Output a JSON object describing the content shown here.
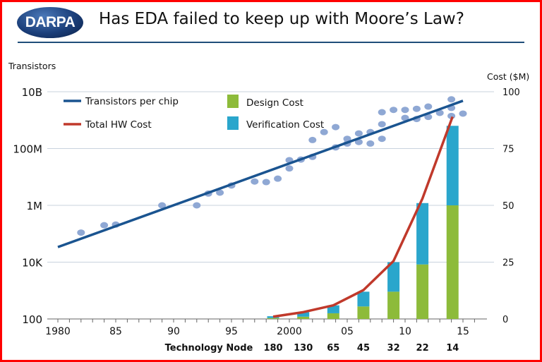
{
  "slide": {
    "logo_text": "DARPA",
    "title": "Has EDA failed to keep up with Moore’s Law?"
  },
  "colors": {
    "frame": "#ff0000",
    "transistor_line": "#1a5490",
    "scatter": "#8fa8d4",
    "hw_cost": "#c0392b",
    "design_cost": "#8dbb3a",
    "verification_cost": "#2aa6cc"
  },
  "chart_data": {
    "type": "combo",
    "left_axis_label": "Transistors",
    "right_axis_label": "Cost ($M)",
    "x_label": "Technology Node",
    "x_ticks": [
      {
        "value": 1980,
        "label": "1980"
      },
      {
        "value": 1985,
        "label": "85"
      },
      {
        "value": 1990,
        "label": "90"
      },
      {
        "value": 1995,
        "label": "95"
      },
      {
        "value": 2000,
        "label": "2000"
      },
      {
        "value": 2005,
        "label": "05"
      },
      {
        "value": 2010,
        "label": "10"
      },
      {
        "value": 2015,
        "label": "15"
      }
    ],
    "xlim": [
      1979,
      2017
    ],
    "left_scale": "log",
    "left_ylim": [
      100,
      10000000000
    ],
    "left_ticks": [
      {
        "value": 100,
        "label": "100"
      },
      {
        "value": 10000,
        "label": "10K"
      },
      {
        "value": 1000000,
        "label": "1M"
      },
      {
        "value": 100000000,
        "label": "100M"
      },
      {
        "value": 10000000000,
        "label": "10B"
      }
    ],
    "right_ylim": [
      0,
      100
    ],
    "right_ticks": [
      {
        "value": 0,
        "label": "0"
      },
      {
        "value": 25,
        "label": "25"
      },
      {
        "value": 50,
        "label": "50"
      },
      {
        "value": 75,
        "label": "75"
      },
      {
        "value": 100,
        "label": "100"
      }
    ],
    "grid": true,
    "legend": [
      {
        "name": "Transistors per chip",
        "kind": "line"
      },
      {
        "name": "Total HW Cost",
        "kind": "line"
      },
      {
        "name": "Design Cost",
        "kind": "bar"
      },
      {
        "name": "Verification Cost",
        "kind": "bar"
      }
    ],
    "legend_placement": "top-left",
    "transistor_scatter": [
      [
        1982,
        110000
      ],
      [
        1984,
        200000
      ],
      [
        1985,
        210000
      ],
      [
        1989,
        1000000
      ],
      [
        1992,
        1000000
      ],
      [
        1993,
        2600000
      ],
      [
        1994,
        2800000
      ],
      [
        1995,
        5000000
      ],
      [
        1997,
        6900000
      ],
      [
        1998,
        6600000
      ],
      [
        1999,
        8700000
      ],
      [
        2000,
        39000000
      ],
      [
        2000,
        20000000
      ],
      [
        2001,
        41000000
      ],
      [
        2002,
        200000000
      ],
      [
        2002,
        51000000
      ],
      [
        2003,
        380000000
      ],
      [
        2004,
        570000000
      ],
      [
        2004,
        110000000
      ],
      [
        2005,
        220000000
      ],
      [
        2005,
        150000000
      ],
      [
        2006,
        340000000
      ],
      [
        2006,
        170000000
      ],
      [
        2007,
        380000000
      ],
      [
        2007,
        150000000
      ],
      [
        2008,
        1900000000
      ],
      [
        2008,
        720000000
      ],
      [
        2008,
        220000000
      ],
      [
        2009,
        2300000000
      ],
      [
        2010,
        2300000000
      ],
      [
        2010,
        1200000000
      ],
      [
        2011,
        2500000000
      ],
      [
        2011,
        1100000000
      ],
      [
        2012,
        3000000000
      ],
      [
        2012,
        1300000000
      ],
      [
        2013,
        1800000000
      ],
      [
        2014,
        5400000000
      ],
      [
        2014,
        2700000000
      ],
      [
        2014,
        1400000000
      ],
      [
        2015,
        1700000000
      ]
    ],
    "transistor_trend": [
      [
        1980,
        34000
      ],
      [
        2015,
        4800000000
      ]
    ],
    "nodes": [
      {
        "node": "180",
        "year": 1998.6,
        "design": 0.4,
        "verification": 0.8,
        "total_hw": 1
      },
      {
        "node": "130",
        "year": 2001.2,
        "design": 1,
        "verification": 2,
        "total_hw": 3
      },
      {
        "node": "65",
        "year": 2003.8,
        "design": 2.5,
        "verification": 3.5,
        "total_hw": 6
      },
      {
        "node": "45",
        "year": 2006.4,
        "design": 5.5,
        "verification": 6.5,
        "total_hw": 12.7
      },
      {
        "node": "32",
        "year": 2009,
        "design": 12,
        "verification": 13,
        "total_hw": 25.5
      },
      {
        "node": "22",
        "year": 2011.5,
        "design": 24,
        "verification": 27,
        "total_hw": 53
      },
      {
        "node": "14",
        "year": 2014.1,
        "design": 50,
        "verification": 35,
        "total_hw": 89
      }
    ]
  }
}
